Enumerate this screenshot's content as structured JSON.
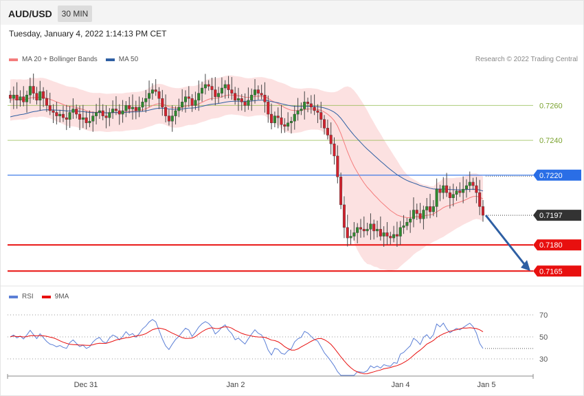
{
  "header": {
    "symbol": "AUD/USD",
    "timeframe": "30 MIN",
    "datetime": "Tuesday, January 4, 2022 1:14:13 PM CET"
  },
  "price_legend": {
    "items": [
      {
        "label": "MA 20 + Bollinger Bands",
        "color": "#f47c7c"
      },
      {
        "label": "MA 50",
        "color": "#2e5fa3"
      }
    ],
    "credit": "Research © 2022 Trading Central"
  },
  "rsi_legend": {
    "items": [
      {
        "label": "RSI",
        "color": "#5b7fd6"
      },
      {
        "label": "9MA",
        "color": "#e8100f"
      }
    ]
  },
  "chart_data": [
    {
      "type": "candlestick",
      "ylim": [
        0.7158,
        0.7285
      ],
      "x_ticks": [
        "Dec 31",
        "Jan 2",
        "Jan 4",
        "Jan 5"
      ],
      "levels": [
        {
          "value": 0.726,
          "label": "0.7260",
          "kind": "target",
          "color": "#8ab640"
        },
        {
          "value": 0.724,
          "label": "0.7240",
          "kind": "target",
          "color": "#8ab640"
        },
        {
          "value": 0.722,
          "label": "0.7220",
          "kind": "pivot",
          "color": "#2a6ee6"
        },
        {
          "value": 0.7197,
          "label": "0.7197",
          "kind": "last",
          "color": "#333333"
        },
        {
          "value": 0.718,
          "label": "0.7180",
          "kind": "support",
          "color": "#e8100f"
        },
        {
          "value": 0.7165,
          "label": "0.7165",
          "kind": "support",
          "color": "#e8100f"
        }
      ],
      "forecast_arrow": {
        "from": 0.7197,
        "to": 0.7165,
        "direction": "down"
      },
      "close": [
        0.7264,
        0.7266,
        0.7263,
        0.7265,
        0.7262,
        0.7266,
        0.7271,
        0.7267,
        0.7263,
        0.7268,
        0.7264,
        0.726,
        0.7257,
        0.7256,
        0.7254,
        0.7255,
        0.7253,
        0.7252,
        0.7256,
        0.7258,
        0.7255,
        0.7252,
        0.7253,
        0.725,
        0.7251,
        0.7254,
        0.7256,
        0.7257,
        0.7254,
        0.7253,
        0.7256,
        0.7258,
        0.7257,
        0.7255,
        0.7257,
        0.726,
        0.7258,
        0.7259,
        0.7257,
        0.7259,
        0.7262,
        0.7264,
        0.7267,
        0.7269,
        0.7268,
        0.7264,
        0.7259,
        0.7254,
        0.7251,
        0.7254,
        0.7257,
        0.7259,
        0.7262,
        0.7265,
        0.7264,
        0.726,
        0.7263,
        0.7267,
        0.727,
        0.7272,
        0.7271,
        0.7269,
        0.7265,
        0.7267,
        0.727,
        0.7272,
        0.7269,
        0.7267,
        0.7263,
        0.7264,
        0.7262,
        0.726,
        0.7263,
        0.7266,
        0.7269,
        0.7267,
        0.7266,
        0.7262,
        0.7255,
        0.725,
        0.7254,
        0.7253,
        0.7249,
        0.7248,
        0.725,
        0.7251,
        0.7255,
        0.7257,
        0.7258,
        0.7262,
        0.7261,
        0.7259,
        0.7257,
        0.7256,
        0.7252,
        0.7247,
        0.7243,
        0.7238,
        0.7231,
        0.7219,
        0.7203,
        0.719,
        0.7184,
        0.7185,
        0.7187,
        0.719,
        0.7189,
        0.7188,
        0.7189,
        0.7192,
        0.7188,
        0.7189,
        0.7185,
        0.7187,
        0.7185,
        0.7184,
        0.7186,
        0.7185,
        0.719,
        0.7191,
        0.7193,
        0.7195,
        0.72,
        0.7198,
        0.7195,
        0.72,
        0.7202,
        0.7199,
        0.7202,
        0.7212,
        0.721,
        0.7214,
        0.721,
        0.7207,
        0.7209,
        0.7211,
        0.721,
        0.7212,
        0.7214,
        0.7216,
        0.7214,
        0.721,
        0.7202,
        0.7197
      ],
      "ma20_start": 0.7263,
      "ma50_start": 0.7253,
      "bands_halfwidth_pips": 12
    },
    {
      "type": "line",
      "name": "RSI",
      "ylim": [
        20,
        80
      ],
      "y_ticks": [
        30,
        50,
        70
      ],
      "series": [
        {
          "name": "RSI",
          "color": "#5b7fd6"
        },
        {
          "name": "9MA",
          "color": "#e8100f"
        }
      ]
    }
  ]
}
